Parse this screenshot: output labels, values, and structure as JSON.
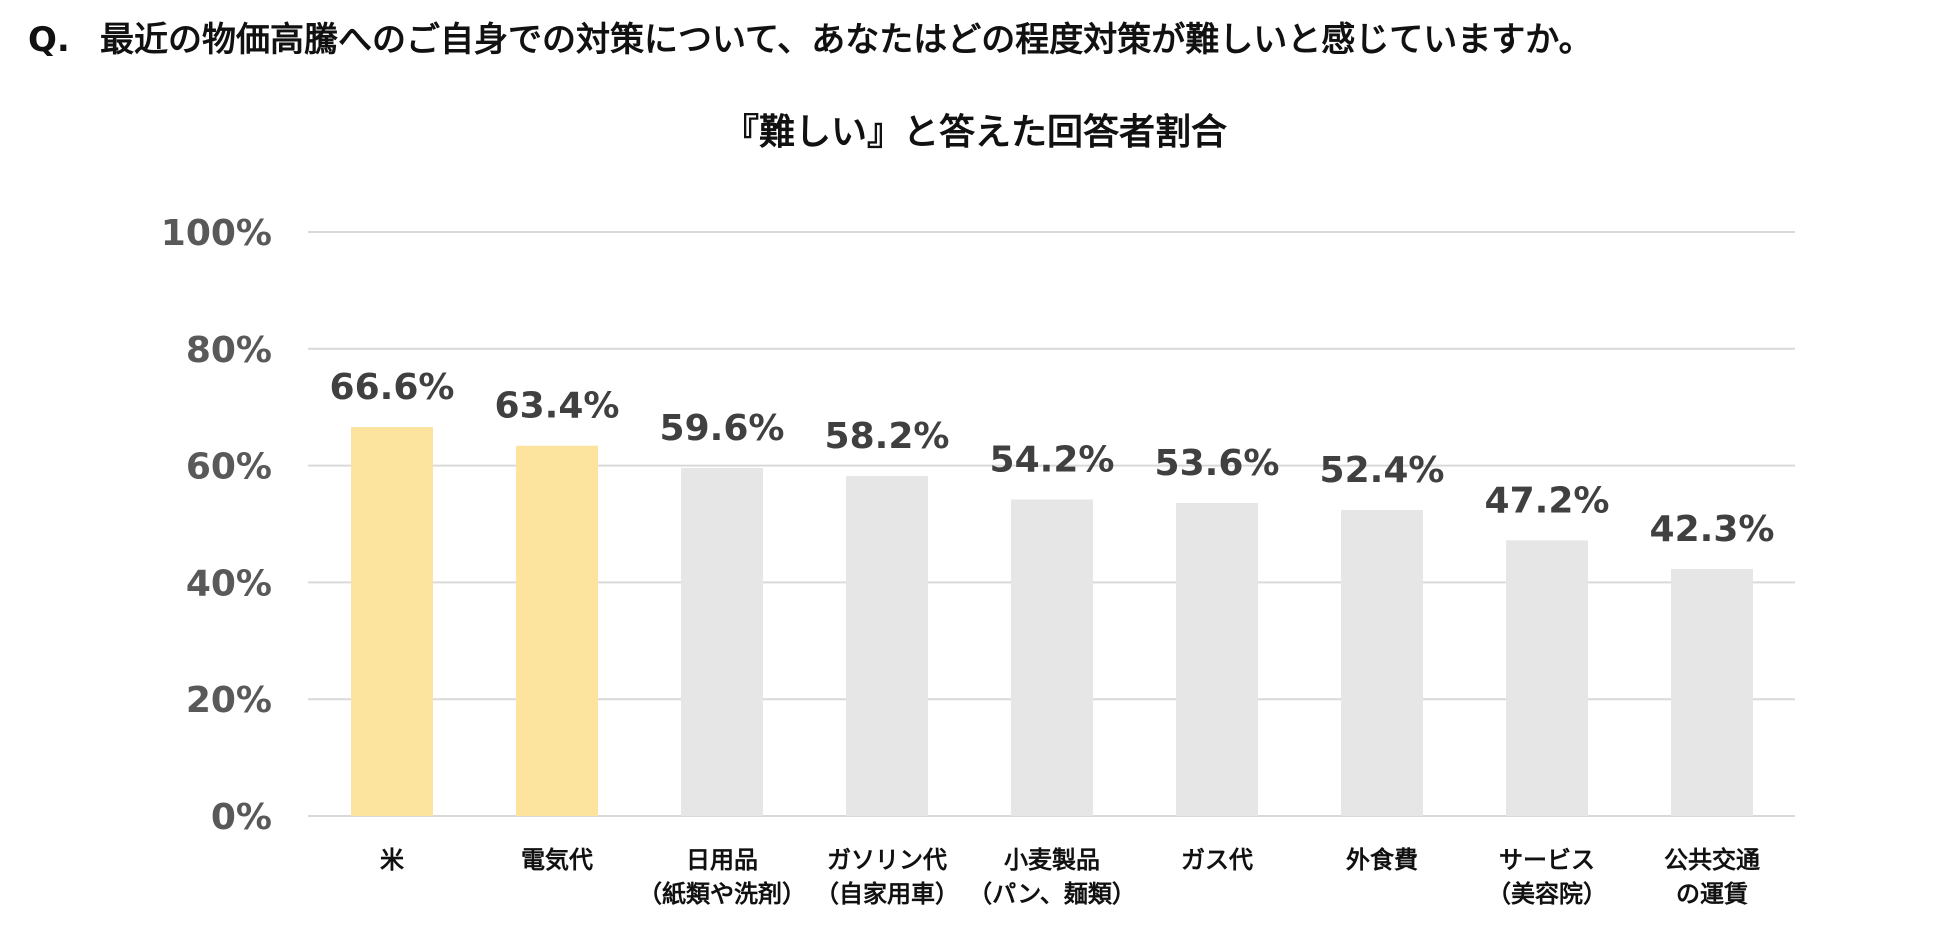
{
  "question": {
    "prefix": "Q.",
    "text": "最近の物価高騰へのご自身での対策について、あなたはどの程度対策が難しいと感じていますか。"
  },
  "colors": {
    "highlight": "#FDE49E",
    "normal": "#E6E6E6",
    "grid": "#D9D9D9",
    "axis_text": "#595959",
    "value_text": "#404040"
  },
  "chart_data": {
    "type": "bar",
    "title": "『難しい』と答えた回答者割合",
    "xlabel": "",
    "ylabel": "",
    "ylim": [
      0,
      100
    ],
    "y_ticks": [
      {
        "value": 0,
        "label": "0%"
      },
      {
        "value": 20,
        "label": "20%"
      },
      {
        "value": 40,
        "label": "40%"
      },
      {
        "value": 60,
        "label": "60%"
      },
      {
        "value": 80,
        "label": "80%"
      },
      {
        "value": 100,
        "label": "100%"
      }
    ],
    "grid": true,
    "legend": "none",
    "categories": [
      {
        "name": "rice",
        "lines": [
          "米"
        ],
        "value": 66.6,
        "label": "66.6%",
        "highlight": true
      },
      {
        "name": "electricity",
        "lines": [
          "電気代"
        ],
        "value": 63.4,
        "label": "63.4%",
        "highlight": true
      },
      {
        "name": "daily-goods",
        "lines": [
          "日用品",
          "（紙類や洗剤）"
        ],
        "value": 59.6,
        "label": "59.6%",
        "highlight": false
      },
      {
        "name": "gasoline",
        "lines": [
          "ガソリン代",
          "（自家用車）"
        ],
        "value": 58.2,
        "label": "58.2%",
        "highlight": false
      },
      {
        "name": "wheat-products",
        "lines": [
          "小麦製品",
          "（パン、麺類）"
        ],
        "value": 54.2,
        "label": "54.2%",
        "highlight": false
      },
      {
        "name": "gas",
        "lines": [
          "ガス代"
        ],
        "value": 53.6,
        "label": "53.6%",
        "highlight": false
      },
      {
        "name": "dining-out",
        "lines": [
          "外食費"
        ],
        "value": 52.4,
        "label": "52.4%",
        "highlight": false
      },
      {
        "name": "services",
        "lines": [
          "サービス",
          "（美容院）"
        ],
        "value": 47.2,
        "label": "47.2%",
        "highlight": false
      },
      {
        "name": "public-transport",
        "lines": [
          "公共交通",
          "の運賃"
        ],
        "value": 42.3,
        "label": "42.3%",
        "highlight": false
      }
    ]
  }
}
